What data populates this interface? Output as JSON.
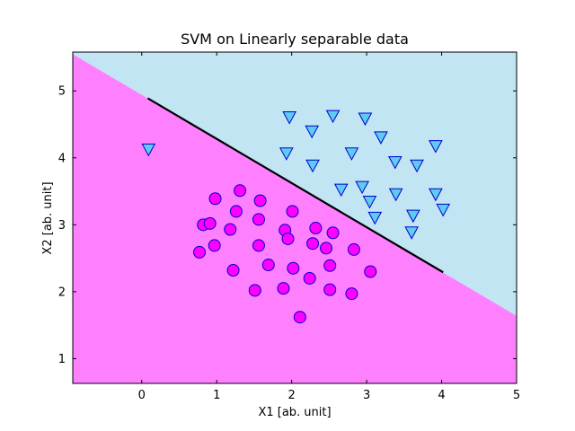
{
  "chart_data": {
    "type": "scatter",
    "title": "SVM on Linearly separable data",
    "xlabel": "X1 [ab. unit]",
    "ylabel": "X2 [ab. unit]",
    "xlim": [
      -0.92,
      5.0
    ],
    "ylim": [
      0.63,
      5.58
    ],
    "xticks": [
      0,
      1,
      2,
      3,
      4,
      5
    ],
    "yticks": [
      1,
      2,
      3,
      4,
      5
    ],
    "grid": false,
    "colors": {
      "region_upper": "#c1e5f3",
      "region_lower": "#ff80ff",
      "circle_fill": "#ff00ff",
      "circle_edge": "#0000cc",
      "triangle_fill": "#5ecbf0",
      "triangle_edge": "#0000cc",
      "boundary": "#000000"
    },
    "decision_region_boundary": [
      [
        -0.92,
        5.55
      ],
      [
        5.0,
        1.64
      ]
    ],
    "decision_line": [
      [
        0.08,
        4.89
      ],
      [
        4.02,
        2.29
      ]
    ],
    "series": [
      {
        "marker": "circle",
        "points": [
          [
            0.98,
            3.39
          ],
          [
            1.31,
            3.51
          ],
          [
            1.58,
            3.36
          ],
          [
            0.82,
            3.0
          ],
          [
            0.91,
            3.02
          ],
          [
            1.26,
            3.2
          ],
          [
            1.56,
            3.08
          ],
          [
            2.01,
            3.2
          ],
          [
            1.18,
            2.93
          ],
          [
            1.91,
            2.92
          ],
          [
            1.95,
            2.79
          ],
          [
            2.32,
            2.95
          ],
          [
            2.55,
            2.88
          ],
          [
            0.97,
            2.69
          ],
          [
            1.56,
            2.69
          ],
          [
            2.28,
            2.72
          ],
          [
            2.46,
            2.65
          ],
          [
            2.83,
            2.63
          ],
          [
            0.77,
            2.59
          ],
          [
            1.69,
            2.4
          ],
          [
            2.51,
            2.39
          ],
          [
            1.22,
            2.32
          ],
          [
            2.02,
            2.35
          ],
          [
            3.05,
            2.3
          ],
          [
            2.24,
            2.2
          ],
          [
            1.51,
            2.02
          ],
          [
            1.89,
            2.05
          ],
          [
            2.51,
            2.03
          ],
          [
            2.8,
            1.97
          ],
          [
            2.11,
            1.62
          ]
        ]
      },
      {
        "marker": "triangle-down",
        "points": [
          [
            1.97,
            4.6
          ],
          [
            2.55,
            4.62
          ],
          [
            2.98,
            4.58
          ],
          [
            2.27,
            4.39
          ],
          [
            3.19,
            4.3
          ],
          [
            3.92,
            4.17
          ],
          [
            0.09,
            4.12
          ],
          [
            1.93,
            4.06
          ],
          [
            2.8,
            4.06
          ],
          [
            2.28,
            3.88
          ],
          [
            3.38,
            3.93
          ],
          [
            3.67,
            3.88
          ],
          [
            2.66,
            3.52
          ],
          [
            2.94,
            3.56
          ],
          [
            3.39,
            3.45
          ],
          [
            3.92,
            3.45
          ],
          [
            3.04,
            3.34
          ],
          [
            4.02,
            3.22
          ],
          [
            3.11,
            3.1
          ],
          [
            3.62,
            3.13
          ],
          [
            3.6,
            2.88
          ]
        ]
      }
    ]
  }
}
